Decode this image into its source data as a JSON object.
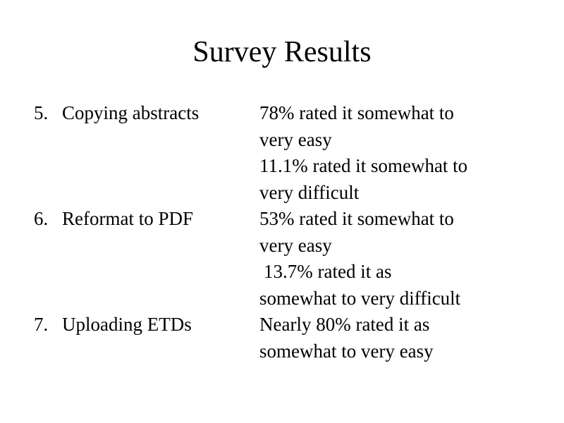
{
  "title": "Survey Results",
  "items": [
    {
      "number": "5.",
      "label": "Copying abstracts",
      "results": [
        [
          "78% rated it somewhat to",
          "very easy"
        ],
        [
          "11.1% rated it somewhat to",
          "very difficult"
        ]
      ]
    },
    {
      "number": "6.",
      "label": "Reformat to PDF",
      "results": [
        [
          "53% rated it somewhat to",
          "very easy"
        ],
        [
          "13.7% rated it as",
          "somewhat to very difficult"
        ]
      ]
    },
    {
      "number": "7.",
      "label": "Uploading ETDs",
      "results": [
        [
          "Nearly 80% rated it as",
          "somewhat to very easy"
        ]
      ]
    }
  ]
}
